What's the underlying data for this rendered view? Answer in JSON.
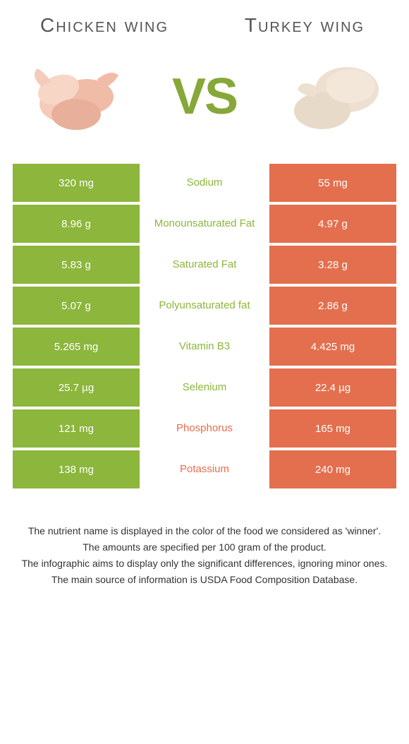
{
  "left_name": "Chicken wing",
  "right_name": "Turkey wing",
  "vs": "VS",
  "colors": {
    "left": "#8cb63c",
    "right": "#e36f4e",
    "left_winner_text": "#8cb63c",
    "right_winner_text": "#e36f4e"
  },
  "rows": [
    {
      "nutrient": "Sodium",
      "left": "320 mg",
      "right": "55 mg",
      "winner": "left"
    },
    {
      "nutrient": "Monounsaturated Fat",
      "left": "8.96 g",
      "right": "4.97 g",
      "winner": "left"
    },
    {
      "nutrient": "Saturated Fat",
      "left": "5.83 g",
      "right": "3.28 g",
      "winner": "left"
    },
    {
      "nutrient": "Polyunsaturated fat",
      "left": "5.07 g",
      "right": "2.86 g",
      "winner": "left"
    },
    {
      "nutrient": "Vitamin B3",
      "left": "5.265 mg",
      "right": "4.425 mg",
      "winner": "left"
    },
    {
      "nutrient": "Selenium",
      "left": "25.7 µg",
      "right": "22.4 µg",
      "winner": "left"
    },
    {
      "nutrient": "Phosphorus",
      "left": "121 mg",
      "right": "165 mg",
      "winner": "right"
    },
    {
      "nutrient": "Potassium",
      "left": "138 mg",
      "right": "240 mg",
      "winner": "right"
    }
  ],
  "footer": [
    "The nutrient name is displayed in the color of the food we considered as 'winner'.",
    "The amounts are specified per 100 gram of the product.",
    "The infographic aims to display only the significant differences, ignoring minor ones.",
    "The main source of information is USDA Food Composition Database."
  ]
}
